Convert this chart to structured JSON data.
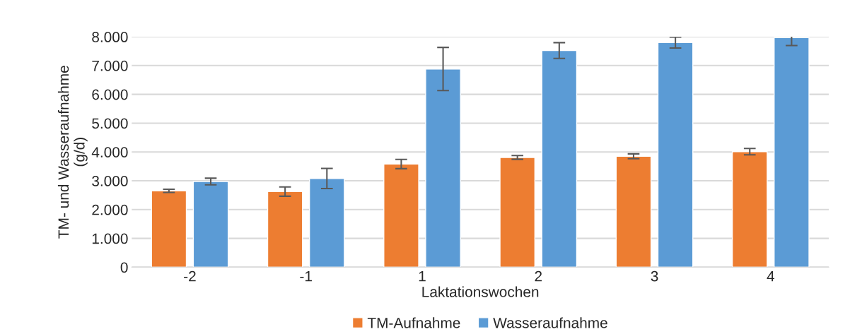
{
  "chart_data": {
    "type": "bar",
    "categories": [
      "-2",
      "-1",
      "1",
      "2",
      "3",
      "4"
    ],
    "series": [
      {
        "name": "TM-Aufnahme",
        "color": "#ed7d31",
        "values": [
          2650,
          2625,
          3580,
          3810,
          3850,
          4010
        ],
        "errors": [
          55,
          160,
          160,
          65,
          85,
          110
        ]
      },
      {
        "name": "Wasseraufnahme",
        "color": "#5b9bd5",
        "values": [
          2975,
          3080,
          6880,
          7520,
          7800,
          7970
        ],
        "errors": [
          115,
          350,
          750,
          275,
          190,
          275
        ]
      }
    ],
    "xlabel": "Laktationswochen",
    "ylabel": "TM- und Wasseraufnahme\n(g/d)",
    "ylim": [
      0,
      8000
    ],
    "yticks": [
      0,
      {
        "value": 1000,
        "label": "1.000"
      },
      {
        "value": 2000,
        "label": "2.000"
      },
      {
        "value": 3000,
        "label": "3.000"
      },
      {
        "value": 4000,
        "label": "4.000"
      },
      {
        "value": 5000,
        "label": "5.000"
      },
      {
        "value": 6000,
        "label": "6.000"
      },
      {
        "value": 7000,
        "label": "7.000"
      },
      {
        "value": 8000,
        "label": "8.000"
      }
    ],
    "grid": "y",
    "legend": "bottom"
  }
}
